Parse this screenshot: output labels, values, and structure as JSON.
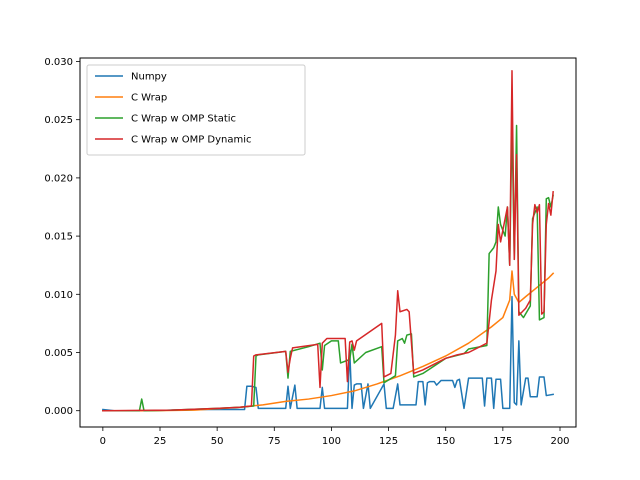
{
  "chart_data": {
    "type": "line",
    "title": "",
    "xlabel": "",
    "ylabel": "",
    "xlim": [
      -10,
      207
    ],
    "ylim": [
      -0.0014,
      0.0303
    ],
    "xticks": [
      0,
      25,
      50,
      75,
      100,
      125,
      150,
      175,
      200
    ],
    "yticks": [
      0.0,
      0.005,
      0.01,
      0.015,
      0.02,
      0.025,
      0.03
    ],
    "ytick_labels": [
      "0.000",
      "0.005",
      "0.010",
      "0.015",
      "0.020",
      "0.025",
      "0.030"
    ],
    "grid": false,
    "legend_position": "top-left",
    "series": [
      {
        "name": "Numpy",
        "color": "#1f77b4",
        "points": [
          [
            0,
            0.0001
          ],
          [
            5,
            0
          ],
          [
            10,
            0
          ],
          [
            20,
            0
          ],
          [
            30,
            5e-05
          ],
          [
            40,
            0.0001
          ],
          [
            50,
            0.0001
          ],
          [
            62,
            0.0001
          ],
          [
            63,
            0.0021
          ],
          [
            65,
            0.0021
          ],
          [
            67,
            0.002
          ],
          [
            68,
            0.0002
          ],
          [
            80,
            0.0002
          ],
          [
            81,
            0.0021
          ],
          [
            82,
            0.0002
          ],
          [
            84,
            0.0022
          ],
          [
            85,
            0.0002
          ],
          [
            95,
            0.0002
          ],
          [
            96,
            0.002
          ],
          [
            97,
            0.0002
          ],
          [
            107,
            0.0002
          ],
          [
            108,
            0.0052
          ],
          [
            109,
            0.0002
          ],
          [
            110,
            0.0022
          ],
          [
            111,
            0.0023
          ],
          [
            113,
            0.0023
          ],
          [
            114,
            0.0002
          ],
          [
            116,
            0.0023
          ],
          [
            117,
            0.0002
          ],
          [
            123,
            0.0023
          ],
          [
            124,
            0.0002
          ],
          [
            127,
            0.0002
          ],
          [
            129,
            0.0023
          ],
          [
            130,
            0.0005
          ],
          [
            137,
            0.0005
          ],
          [
            138,
            0.0025
          ],
          [
            140,
            0.0025
          ],
          [
            141,
            0.0005
          ],
          [
            142,
            0.0024
          ],
          [
            143,
            0.0025
          ],
          [
            145,
            0.0025
          ],
          [
            146,
            0.0022
          ],
          [
            148,
            0.0026
          ],
          [
            153,
            0.0026
          ],
          [
            154,
            0.002
          ],
          [
            155,
            0.0026
          ],
          [
            156,
            0.0027
          ],
          [
            158,
            0.0002
          ],
          [
            160,
            0.0028
          ],
          [
            166,
            0.0028
          ],
          [
            167,
            0.0004
          ],
          [
            168,
            0.0028
          ],
          [
            170,
            0.0028
          ],
          [
            171,
            0.0002
          ],
          [
            172,
            0.0027
          ],
          [
            174,
            0.0027
          ],
          [
            175,
            0.0002
          ],
          [
            178,
            0.0002
          ],
          [
            179,
            0.0098
          ],
          [
            180,
            0.0007
          ],
          [
            181,
            0.0005
          ],
          [
            182,
            0.006
          ],
          [
            183,
            0.0005
          ],
          [
            185,
            0.0028
          ],
          [
            186,
            0.0028
          ],
          [
            187,
            0.0012
          ],
          [
            190,
            0.0012
          ],
          [
            191,
            0.0029
          ],
          [
            193,
            0.0029
          ],
          [
            194,
            0.0013
          ],
          [
            197,
            0.0014
          ]
        ]
      },
      {
        "name": "C Wrap",
        "color": "#ff7f0e",
        "points": [
          [
            0,
            0
          ],
          [
            20,
            0
          ],
          [
            40,
            5e-05
          ],
          [
            60,
            0.0003
          ],
          [
            70,
            0.0005
          ],
          [
            80,
            0.0008
          ],
          [
            90,
            0.001
          ],
          [
            100,
            0.0013
          ],
          [
            110,
            0.0017
          ],
          [
            120,
            0.0023
          ],
          [
            130,
            0.003
          ],
          [
            140,
            0.0038
          ],
          [
            150,
            0.0047
          ],
          [
            160,
            0.0058
          ],
          [
            170,
            0.0072
          ],
          [
            175,
            0.008
          ],
          [
            178,
            0.0095
          ],
          [
            179,
            0.012
          ],
          [
            180,
            0.01
          ],
          [
            182,
            0.0093
          ],
          [
            185,
            0.0098
          ],
          [
            190,
            0.0106
          ],
          [
            195,
            0.0114
          ],
          [
            197,
            0.0118
          ]
        ]
      },
      {
        "name": "C Wrap w OMP Static",
        "color": "#2ca02c",
        "points": [
          [
            0,
            0
          ],
          [
            15,
            0
          ],
          [
            16,
            0
          ],
          [
            17,
            0.001
          ],
          [
            18,
            0
          ],
          [
            30,
            5e-05
          ],
          [
            50,
            0.0002
          ],
          [
            60,
            0.0003
          ],
          [
            66,
            0.0004
          ],
          [
            67,
            0.0047
          ],
          [
            68,
            0.0048
          ],
          [
            80,
            0.0051
          ],
          [
            81,
            0.0028
          ],
          [
            82,
            0.0051
          ],
          [
            90,
            0.0055
          ],
          [
            95,
            0.0058
          ],
          [
            96,
            0.0035
          ],
          [
            97,
            0.0056
          ],
          [
            100,
            0.006
          ],
          [
            103,
            0.006
          ],
          [
            104,
            0.0041
          ],
          [
            108,
            0.0044
          ],
          [
            109,
            0.0057
          ],
          [
            110,
            0.0041
          ],
          [
            115,
            0.005
          ],
          [
            122,
            0.0055
          ],
          [
            123,
            0.0024
          ],
          [
            128,
            0.003
          ],
          [
            129,
            0.006
          ],
          [
            131,
            0.0062
          ],
          [
            132,
            0.0058
          ],
          [
            133,
            0.0065
          ],
          [
            135,
            0.0066
          ],
          [
            136,
            0.0029
          ],
          [
            140,
            0.0032
          ],
          [
            150,
            0.0045
          ],
          [
            158,
            0.0049
          ],
          [
            160,
            0.0053
          ],
          [
            168,
            0.0056
          ],
          [
            169,
            0.0135
          ],
          [
            171,
            0.014
          ],
          [
            172,
            0.0145
          ],
          [
            173,
            0.0175
          ],
          [
            174,
            0.016
          ],
          [
            176,
            0.015
          ],
          [
            177,
            0.0175
          ],
          [
            178,
            0.0125
          ],
          [
            179,
            0.0248
          ],
          [
            180,
            0.013
          ],
          [
            181,
            0.0245
          ],
          [
            182,
            0.0085
          ],
          [
            184,
            0.008
          ],
          [
            187,
            0.009
          ],
          [
            188,
            0.0165
          ],
          [
            190,
            0.0175
          ],
          [
            191,
            0.0078
          ],
          [
            193,
            0.008
          ],
          [
            194,
            0.0182
          ],
          [
            195,
            0.0183
          ],
          [
            196,
            0.0175
          ],
          [
            197,
            0.0185
          ]
        ]
      },
      {
        "name": "C Wrap w OMP Dynamic",
        "color": "#d62728",
        "points": [
          [
            0,
            0
          ],
          [
            30,
            5e-05
          ],
          [
            50,
            0.0002
          ],
          [
            60,
            0.0003
          ],
          [
            65,
            0.0004
          ],
          [
            66,
            0.0047
          ],
          [
            67,
            0.0048
          ],
          [
            80,
            0.0051
          ],
          [
            81,
            0.0033
          ],
          [
            82,
            0.0045
          ],
          [
            83,
            0.0054
          ],
          [
            94,
            0.0057
          ],
          [
            95,
            0.002
          ],
          [
            96,
            0.0058
          ],
          [
            98,
            0.0062
          ],
          [
            106,
            0.0062
          ],
          [
            107,
            0.0025
          ],
          [
            108,
            0.0059
          ],
          [
            109,
            0.006
          ],
          [
            110,
            0.0052
          ],
          [
            111,
            0.006
          ],
          [
            122,
            0.0075
          ],
          [
            123,
            0.0029
          ],
          [
            126,
            0.0032
          ],
          [
            128,
            0.0065
          ],
          [
            129,
            0.0103
          ],
          [
            130,
            0.0085
          ],
          [
            133,
            0.0087
          ],
          [
            134,
            0.0085
          ],
          [
            136,
            0.0032
          ],
          [
            140,
            0.0035
          ],
          [
            150,
            0.0045
          ],
          [
            155,
            0.0048
          ],
          [
            160,
            0.005
          ],
          [
            168,
            0.0058
          ],
          [
            170,
            0.0095
          ],
          [
            172,
            0.012
          ],
          [
            173,
            0.016
          ],
          [
            174,
            0.0145
          ],
          [
            176,
            0.0165
          ],
          [
            177,
            0.0175
          ],
          [
            178,
            0.0125
          ],
          [
            179,
            0.0292
          ],
          [
            180,
            0.013
          ],
          [
            181,
            0.022
          ],
          [
            182,
            0.0082
          ],
          [
            185,
            0.0088
          ],
          [
            187,
            0.0095
          ],
          [
            188,
            0.016
          ],
          [
            189,
            0.0177
          ],
          [
            190,
            0.017
          ],
          [
            191,
            0.0177
          ],
          [
            192,
            0.0083
          ],
          [
            193,
            0.0085
          ],
          [
            194,
            0.016
          ],
          [
            195,
            0.0178
          ],
          [
            196,
            0.0168
          ],
          [
            197,
            0.0188
          ]
        ]
      }
    ]
  }
}
